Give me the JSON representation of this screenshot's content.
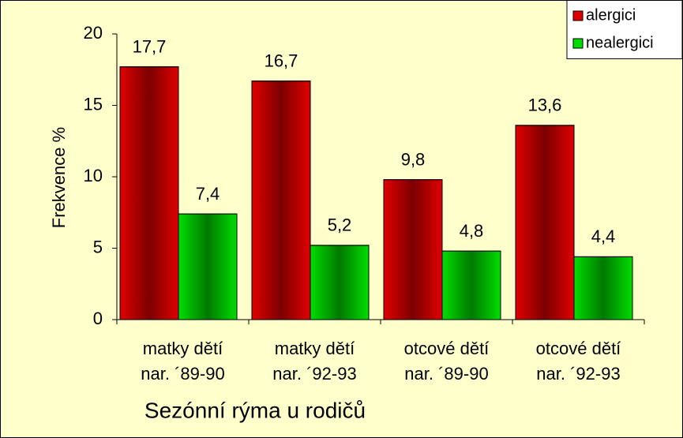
{
  "chart_data": {
    "type": "bar",
    "xlabel": "Sezónní rýma u rodičů",
    "ylabel": "Frekvence %",
    "categories": [
      "matky dětí\nnar. ´89-90",
      "matky dětí\nnar. ´92-93",
      "otcové dětí\nnar. ´89-90",
      "otcové dětí\nnar. ´92-93"
    ],
    "series": [
      {
        "name": "alergici",
        "color": "#e00000",
        "values": [
          17.7,
          16.7,
          9.8,
          13.6
        ],
        "value_labels": [
          "17,7",
          "16,7",
          "9,8",
          "13,6"
        ]
      },
      {
        "name": "nealergici",
        "color": "#00dd00",
        "values": [
          7.4,
          5.2,
          4.8,
          4.4
        ],
        "value_labels": [
          "7,4",
          "5,2",
          "4,8",
          "4,4"
        ]
      }
    ],
    "ylim": [
      0,
      20
    ],
    "yticks": [
      0,
      5,
      10,
      15,
      20
    ],
    "grid": false,
    "legend": "top-right"
  }
}
